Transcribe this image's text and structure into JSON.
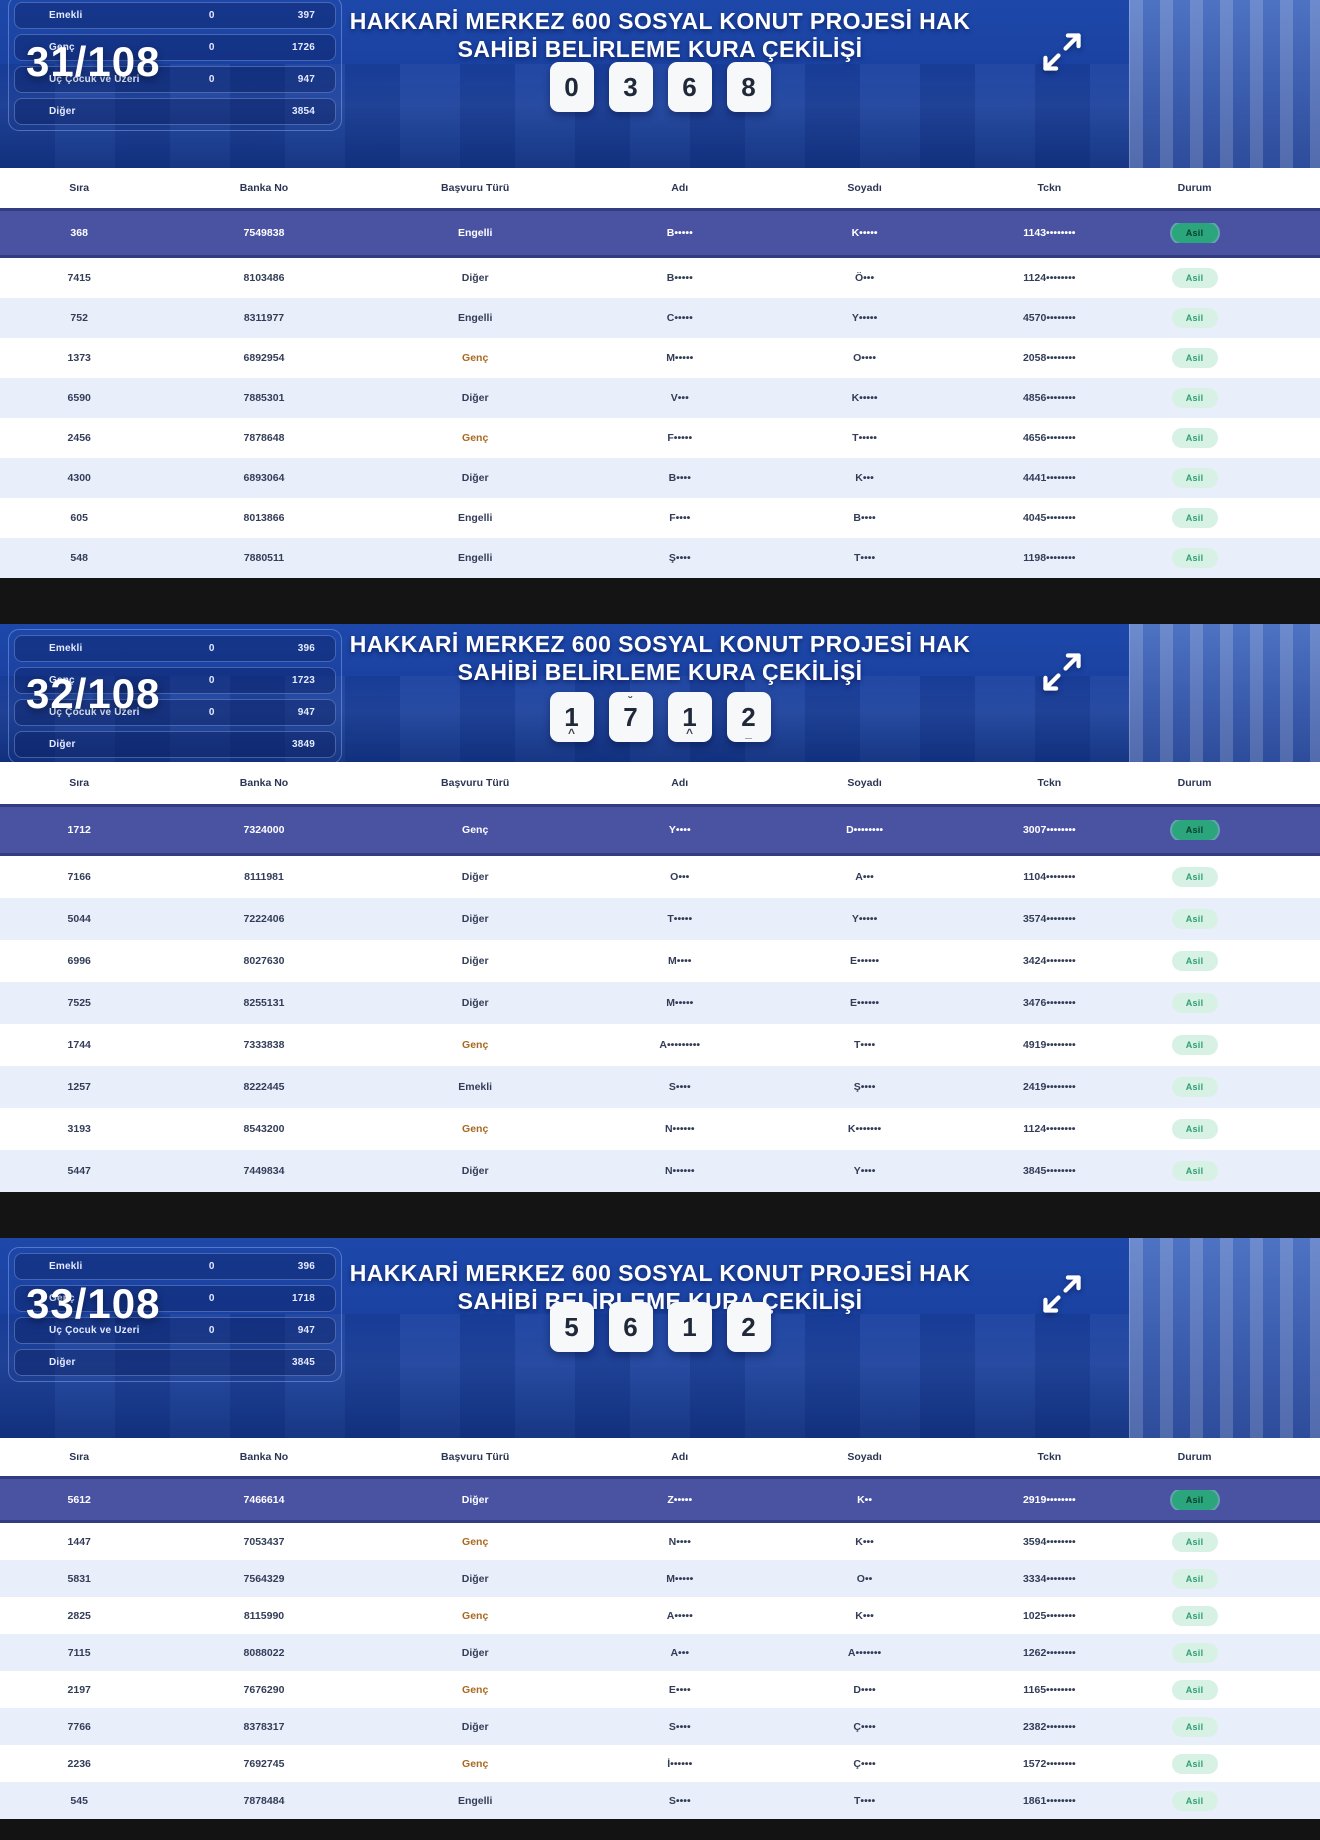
{
  "shared": {
    "title_line1": "HAKKARİ MERKEZ 600 SOSYAL KONUT PROJESİ HAK",
    "title_line2": "SAHİBİ BELİRLEME KURA ÇEKİLİŞİ",
    "table_headers": [
      "Sıra",
      "Banka No",
      "Başvuru Türü",
      "Adı",
      "Soyadı",
      "Tckn",
      "Durum"
    ],
    "status_label": "Asil",
    "genc_label": "Genç",
    "colors": {
      "header_blue": "#1a41a0",
      "highlight_row": "#4a53a2",
      "badge_bg": "#d7f2e4",
      "badge_text": "#2e9e74",
      "badge_hl_bg": "#2ba57b",
      "genc_text": "#a8691f",
      "separator_band": "#141414"
    }
  },
  "sections": [
    {
      "page": "31/108",
      "stats": [
        {
          "label": "Emekli",
          "mid": "0",
          "value": "397"
        },
        {
          "label": "Genç",
          "mid": "0",
          "value": "1726"
        },
        {
          "label": "Üç Çocuk ve Üzeri",
          "mid": "0",
          "value": "947"
        },
        {
          "label": "Diğer",
          "mid": "",
          "value": "3854"
        }
      ],
      "tiles": [
        {
          "digit": "0",
          "top": "",
          "bottom": ""
        },
        {
          "digit": "3",
          "top": "",
          "bottom": ""
        },
        {
          "digit": "6",
          "top": "",
          "bottom": ""
        },
        {
          "digit": "8",
          "top": "",
          "bottom": ""
        }
      ],
      "rows": [
        {
          "sira": "368",
          "banka": "7549838",
          "tur": "Engelli",
          "adi": "B•••••",
          "soyadi": "K•••••",
          "tckn": "1143••••••••",
          "durum": "Asil",
          "highlighted": true
        },
        {
          "sira": "7415",
          "banka": "8103486",
          "tur": "Diğer",
          "adi": "B•••••",
          "soyadi": "Ö•••",
          "tckn": "1124••••••••",
          "durum": "Asil",
          "highlighted": false
        },
        {
          "sira": "752",
          "banka": "8311977",
          "tur": "Engelli",
          "adi": "C•••••",
          "soyadi": "Y•••••",
          "tckn": "4570••••••••",
          "durum": "Asil",
          "highlighted": false
        },
        {
          "sira": "1373",
          "banka": "6892954",
          "tur": "Genç",
          "adi": "M•••••",
          "soyadi": "O••••",
          "tckn": "2058••••••••",
          "durum": "Asil",
          "highlighted": false
        },
        {
          "sira": "6590",
          "banka": "7885301",
          "tur": "Diğer",
          "adi": "V•••",
          "soyadi": "K•••••",
          "tckn": "4856••••••••",
          "durum": "Asil",
          "highlighted": false
        },
        {
          "sira": "2456",
          "banka": "7878648",
          "tur": "Genç",
          "adi": "F•••••",
          "soyadi": "T•••••",
          "tckn": "4656••••••••",
          "durum": "Asil",
          "highlighted": false
        },
        {
          "sira": "4300",
          "banka": "6893064",
          "tur": "Diğer",
          "adi": "B••••",
          "soyadi": "K•••",
          "tckn": "4441••••••••",
          "durum": "Asil",
          "highlighted": false
        },
        {
          "sira": "605",
          "banka": "8013866",
          "tur": "Engelli",
          "adi": "F••••",
          "soyadi": "B••••",
          "tckn": "4045••••••••",
          "durum": "Asil",
          "highlighted": false
        },
        {
          "sira": "548",
          "banka": "7880511",
          "tur": "Engelli",
          "adi": "Ş••••",
          "soyadi": "T••••",
          "tckn": "1198••••••••",
          "durum": "Asil",
          "highlighted": false
        }
      ]
    },
    {
      "page": "32/108",
      "stats": [
        {
          "label": "Emekli",
          "mid": "0",
          "value": "396"
        },
        {
          "label": "Genç",
          "mid": "0",
          "value": "1723"
        },
        {
          "label": "Üç Çocuk ve Üzeri",
          "mid": "0",
          "value": "947"
        },
        {
          "label": "Diğer",
          "mid": "",
          "value": "3849"
        }
      ],
      "tiles": [
        {
          "digit": "1",
          "top": "",
          "bottom": "^"
        },
        {
          "digit": "7",
          "top": "˘",
          "bottom": ""
        },
        {
          "digit": "1",
          "top": "",
          "bottom": "^"
        },
        {
          "digit": "2",
          "top": "",
          "bottom": "_"
        }
      ],
      "rows": [
        {
          "sira": "1712",
          "banka": "7324000",
          "tur": "Genç",
          "adi": "Y••••",
          "soyadi": "D••••••••",
          "tckn": "3007••••••••",
          "durum": "Asil",
          "highlighted": true
        },
        {
          "sira": "7166",
          "banka": "8111981",
          "tur": "Diğer",
          "adi": "O•••",
          "soyadi": "A•••",
          "tckn": "1104••••••••",
          "durum": "Asil",
          "highlighted": false
        },
        {
          "sira": "5044",
          "banka": "7222406",
          "tur": "Diğer",
          "adi": "T•••••",
          "soyadi": "Y•••••",
          "tckn": "3574••••••••",
          "durum": "Asil",
          "highlighted": false
        },
        {
          "sira": "6996",
          "banka": "8027630",
          "tur": "Diğer",
          "adi": "M••••",
          "soyadi": "E••••••",
          "tckn": "3424••••••••",
          "durum": "Asil",
          "highlighted": false
        },
        {
          "sira": "7525",
          "banka": "8255131",
          "tur": "Diğer",
          "adi": "M•••••",
          "soyadi": "E••••••",
          "tckn": "3476••••••••",
          "durum": "Asil",
          "highlighted": false
        },
        {
          "sira": "1744",
          "banka": "7333838",
          "tur": "Genç",
          "adi": "A•••••••••",
          "soyadi": "T••••",
          "tckn": "4919••••••••",
          "durum": "Asil",
          "highlighted": false
        },
        {
          "sira": "1257",
          "banka": "8222445",
          "tur": "Emekli",
          "adi": "S••••",
          "soyadi": "Ş••••",
          "tckn": "2419••••••••",
          "durum": "Asil",
          "highlighted": false
        },
        {
          "sira": "3193",
          "banka": "8543200",
          "tur": "Genç",
          "adi": "N••••••",
          "soyadi": "K•••••••",
          "tckn": "1124••••••••",
          "durum": "Asil",
          "highlighted": false
        },
        {
          "sira": "5447",
          "banka": "7449834",
          "tur": "Diğer",
          "adi": "N••••••",
          "soyadi": "Y••••",
          "tckn": "3845••••••••",
          "durum": "Asil",
          "highlighted": false
        }
      ]
    },
    {
      "page": "33/108",
      "stats": [
        {
          "label": "Emekli",
          "mid": "0",
          "value": "396"
        },
        {
          "label": "Genç",
          "mid": "0",
          "value": "1718"
        },
        {
          "label": "Üç Çocuk ve Üzeri",
          "mid": "0",
          "value": "947"
        },
        {
          "label": "Diğer",
          "mid": "",
          "value": "3845"
        }
      ],
      "tiles": [
        {
          "digit": "5",
          "top": "",
          "bottom": ""
        },
        {
          "digit": "6",
          "top": "",
          "bottom": ""
        },
        {
          "digit": "1",
          "top": "",
          "bottom": ""
        },
        {
          "digit": "2",
          "top": "",
          "bottom": ""
        }
      ],
      "rows": [
        {
          "sira": "5612",
          "banka": "7466614",
          "tur": "Diğer",
          "adi": "Z•••••",
          "soyadi": "K••",
          "tckn": "2919••••••••",
          "durum": "Asil",
          "highlighted": true
        },
        {
          "sira": "1447",
          "banka": "7053437",
          "tur": "Genç",
          "adi": "N••••",
          "soyadi": "K•••",
          "tckn": "3594••••••••",
          "durum": "Asil",
          "highlighted": false
        },
        {
          "sira": "5831",
          "banka": "7564329",
          "tur": "Diğer",
          "adi": "M•••••",
          "soyadi": "O••",
          "tckn": "3334••••••••",
          "durum": "Asil",
          "highlighted": false
        },
        {
          "sira": "2825",
          "banka": "8115990",
          "tur": "Genç",
          "adi": "A•••••",
          "soyadi": "K•••",
          "tckn": "1025••••••••",
          "durum": "Asil",
          "highlighted": false
        },
        {
          "sira": "7115",
          "banka": "8088022",
          "tur": "Diğer",
          "adi": "A•••",
          "soyadi": "A•••••••",
          "tckn": "1262••••••••",
          "durum": "Asil",
          "highlighted": false
        },
        {
          "sira": "2197",
          "banka": "7676290",
          "tur": "Genç",
          "adi": "E••••",
          "soyadi": "D••••",
          "tckn": "1165••••••••",
          "durum": "Asil",
          "highlighted": false
        },
        {
          "sira": "7766",
          "banka": "8378317",
          "tur": "Diğer",
          "adi": "S••••",
          "soyadi": "Ç••••",
          "tckn": "2382••••••••",
          "durum": "Asil",
          "highlighted": false
        },
        {
          "sira": "2236",
          "banka": "7692745",
          "tur": "Genç",
          "adi": "İ••••••",
          "soyadi": "Ç••••",
          "tckn": "1572••••••••",
          "durum": "Asil",
          "highlighted": false
        },
        {
          "sira": "545",
          "banka": "7878484",
          "tur": "Engelli",
          "adi": "S••••",
          "soyadi": "T••••",
          "tckn": "1861••••••••",
          "durum": "Asil",
          "highlighted": false
        }
      ]
    }
  ]
}
